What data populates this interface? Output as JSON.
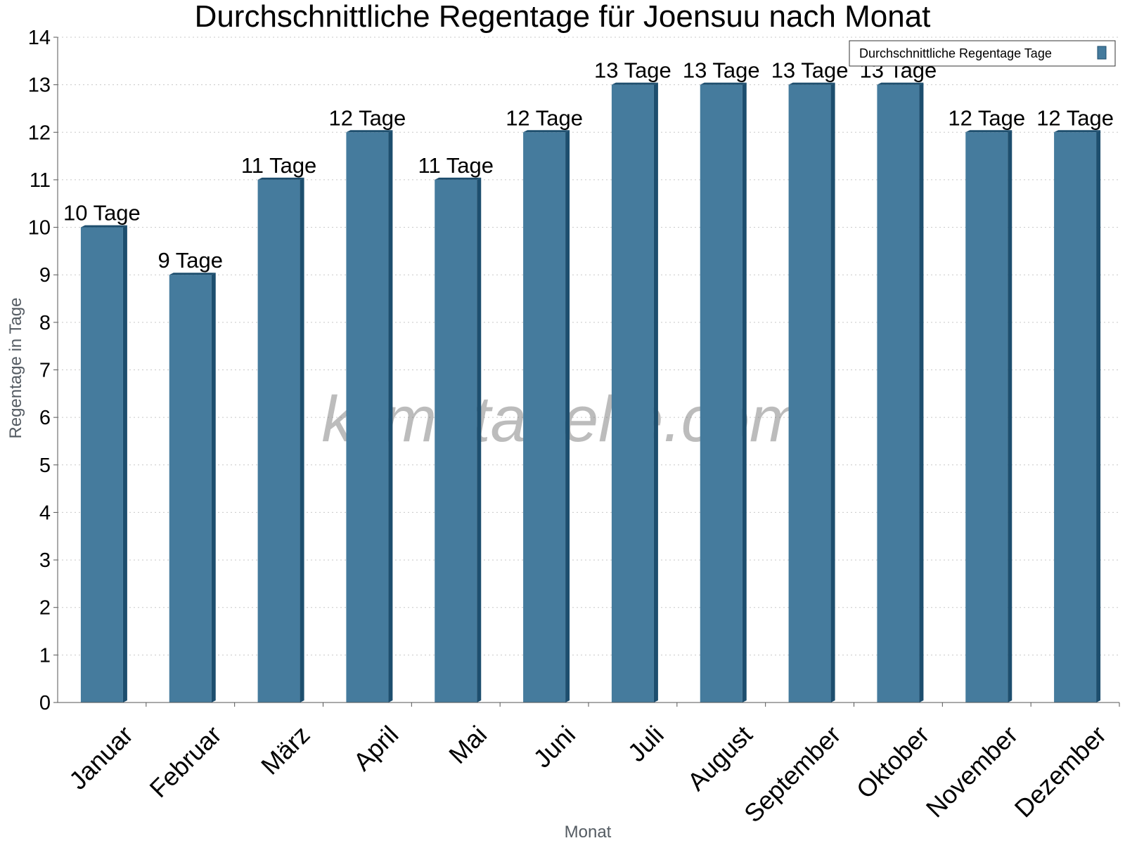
{
  "chart_data": {
    "type": "bar",
    "title": "Durchschnittliche Regentage für Joensuu nach Monat",
    "xlabel": "Monat",
    "ylabel": "Regentage in Tage",
    "categories": [
      "Januar",
      "Februar",
      "März",
      "April",
      "Mai",
      "Juni",
      "Juli",
      "August",
      "September",
      "Oktober",
      "November",
      "Dezember"
    ],
    "series": [
      {
        "name": "Durchschnittliche Regentage Tage",
        "values": [
          10,
          9,
          11,
          12,
          11,
          12,
          13,
          13,
          13,
          13,
          12,
          12
        ],
        "data_labels": [
          "10 Tage",
          "9 Tage",
          "11 Tage",
          "12 Tage",
          "11 Tage",
          "12 Tage",
          "13 Tage",
          "13 Tage",
          "13 Tage",
          "13 Tage",
          "12 Tage",
          "12 Tage"
        ]
      }
    ],
    "ylim": [
      0,
      14
    ],
    "yticks": [
      "0",
      "1",
      "2",
      "3",
      "4",
      "5",
      "6",
      "7",
      "8",
      "9",
      "10",
      "11",
      "12",
      "13",
      "14"
    ],
    "grid": true,
    "legend_position": "top-right",
    "watermark": "klimatabelle.com",
    "colors": {
      "bar": "#457b9d",
      "bar_side": "#1d4e6e",
      "grid": "#c8c8c8",
      "axis": "#555555"
    }
  }
}
